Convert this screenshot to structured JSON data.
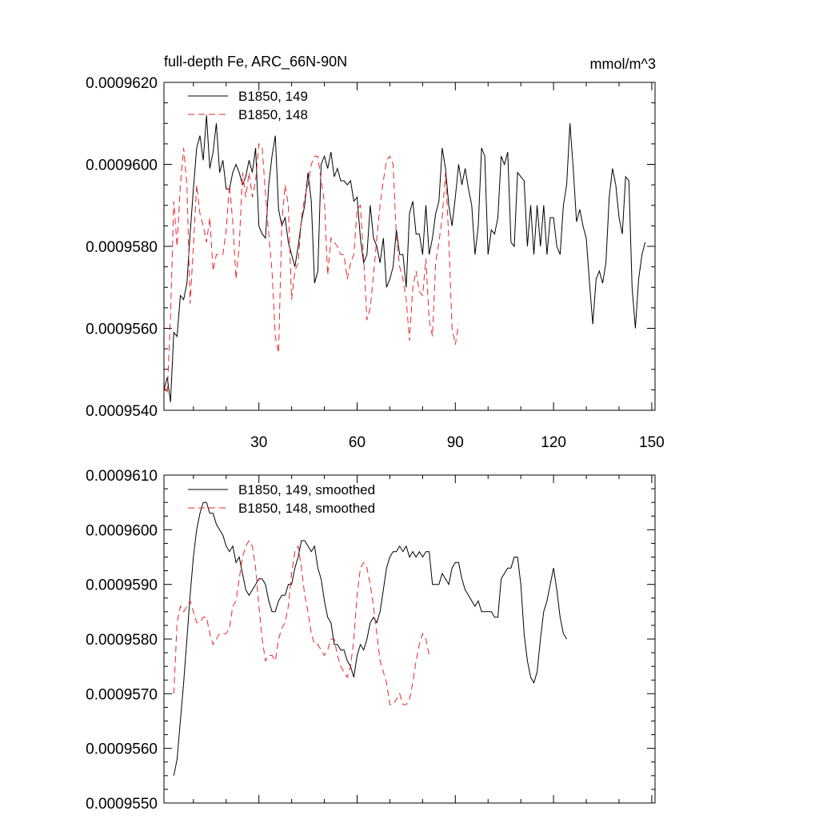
{
  "chart_data": [
    {
      "type": "line",
      "title": "full-depth Fe, ARC_66N-90N",
      "units": "mmol/m^3",
      "xlim": [
        1,
        151
      ],
      "ylim": [
        0.000954,
        0.000962
      ],
      "xticks": [
        30,
        60,
        90,
        120,
        150
      ],
      "xtick_labels": [
        "30",
        "60",
        "90",
        "120",
        "150"
      ],
      "yticks": [
        0.000954,
        0.000956,
        0.000958,
        0.00096,
        0.000962
      ],
      "ytick_labels": [
        "0.0009540",
        "0.0009560",
        "0.0009580",
        "0.0009600",
        "0.0009620"
      ],
      "legend_position": "top-left",
      "series": [
        {
          "name": "B1850, 149",
          "color": "#000000",
          "dash": "solid",
          "x_start": 1,
          "values": [
            0.0009545,
            0.0009548,
            0.0009542,
            0.0009559,
            0.0009558,
            0.0009568,
            0.0009567,
            0.0009571,
            0.0009583,
            0.0009594,
            0.0009604,
            0.0009607,
            0.0009601,
            0.0009612,
            0.0009599,
            0.0009603,
            0.000961,
            0.0009598,
            0.0009601,
            0.0009594,
            0.0009594,
            0.0009598,
            0.00096,
            0.0009598,
            0.0009595,
            0.0009597,
            0.0009601,
            0.0009598,
            0.0009604,
            0.0009585,
            0.0009583,
            0.0009582,
            0.0009595,
            0.0009602,
            0.0009607,
            0.0009589,
            0.0009585,
            0.0009587,
            0.0009581,
            0.0009578,
            0.0009575,
            0.000958,
            0.0009586,
            0.000959,
            0.0009598,
            0.0009591,
            0.0009571,
            0.0009574,
            0.00096,
            0.0009602,
            0.0009599,
            0.0009603,
            0.0009597,
            0.0009599,
            0.0009596,
            0.0009596,
            0.0009595,
            0.0009596,
            0.0009591,
            0.0009592,
            0.0009582,
            0.0009576,
            0.0009578,
            0.000959,
            0.0009582,
            0.000958,
            0.0009576,
            0.0009582,
            0.000957,
            0.0009572,
            0.0009575,
            0.0009584,
            0.0009578,
            0.0009578,
            0.000957,
            0.0009588,
            0.0009591,
            0.0009583,
            0.0009583,
            0.0009578,
            0.000959,
            0.0009578,
            0.0009582,
            0.0009588,
            0.0009591,
            0.0009604,
            0.0009599,
            0.000959,
            0.0009585,
            0.0009592,
            0.00096,
            0.0009595,
            0.0009599,
            0.0009594,
            0.000959,
            0.0009578,
            0.0009585,
            0.0009604,
            0.0009602,
            0.0009578,
            0.0009584,
            0.0009583,
            0.0009587,
            0.0009602,
            0.00096,
            0.0009603,
            0.0009581,
            0.000958,
            0.0009598,
            0.0009597,
            0.0009596,
            0.000958,
            0.000959,
            0.0009578,
            0.000959,
            0.000958,
            0.000959,
            0.0009578,
            0.0009587,
            0.0009587,
            0.000958,
            0.0009578,
            0.000959,
            0.0009595,
            0.000961,
            0.0009599,
            0.0009586,
            0.0009589,
            0.0009585,
            0.0009582,
            0.0009571,
            0.0009561,
            0.0009572,
            0.0009574,
            0.0009571,
            0.0009576,
            0.0009592,
            0.0009599,
            0.0009595,
            0.0009587,
            0.0009583,
            0.0009597,
            0.0009596,
            0.000957,
            0.000956,
            0.0009572,
            0.0009578,
            0.0009581
          ]
        },
        {
          "name": "B1850, 148",
          "color": "#e8262a",
          "dash": "dashed",
          "x_start": 1,
          "values": [
            0.0009546,
            0.0009544,
            0.0009563,
            0.0009591,
            0.000958,
            0.0009595,
            0.0009604,
            0.0009595,
            0.0009566,
            0.000958,
            0.0009595,
            0.0009588,
            0.0009585,
            0.0009581,
            0.0009587,
            0.0009574,
            0.0009578,
            0.0009578,
            0.0009578,
            0.0009584,
            0.0009595,
            0.0009586,
            0.0009572,
            0.000958,
            0.0009598,
            0.0009592,
            0.0009598,
            0.0009592,
            0.0009596,
            0.0009605,
            0.0009604,
            0.0009593,
            0.0009583,
            0.0009574,
            0.0009558,
            0.0009554,
            0.0009586,
            0.0009595,
            0.000959,
            0.0009567,
            0.0009574,
            0.0009576,
            0.0009587,
            0.0009592,
            0.0009595,
            0.00096,
            0.0009602,
            0.0009602,
            0.0009596,
            0.0009591,
            0.0009573,
            0.0009582,
            0.0009581,
            0.000958,
            0.0009578,
            0.0009578,
            0.0009572,
            0.0009576,
            0.0009578,
            0.0009589,
            0.000959,
            0.0009577,
            0.0009562,
            0.0009565,
            0.0009573,
            0.0009582,
            0.000959,
            0.0009596,
            0.0009601,
            0.0009602,
            0.00096,
            0.0009582,
            0.0009575,
            0.0009572,
            0.0009567,
            0.0009557,
            0.000957,
            0.0009574,
            0.0009569,
            0.0009568,
            0.0009577,
            0.0009562,
            0.0009558,
            0.0009576,
            0.0009581,
            0.0009587,
            0.0009598,
            0.0009582,
            0.000956,
            0.0009556,
            0.0009561
          ]
        }
      ]
    },
    {
      "type": "line",
      "xlim": [
        1,
        151
      ],
      "ylim": [
        0.000955,
        0.000961
      ],
      "yticks": [
        0.000955,
        0.000956,
        0.000957,
        0.000958,
        0.000959,
        0.00096,
        0.000961
      ],
      "ytick_labels": [
        "0.0009550",
        "0.0009560",
        "0.0009570",
        "0.0009580",
        "0.0009590",
        "0.0009600",
        "0.0009610"
      ],
      "xticks": [
        30,
        60,
        90,
        120,
        150
      ],
      "legend_position": "top-left",
      "series": [
        {
          "name": "B1850, 149, smoothed",
          "color": "#000000",
          "dash": "solid",
          "x_start": 4,
          "values": [
            0.0009555,
            0.0009558,
            0.0009565,
            0.0009572,
            0.000958,
            0.0009588,
            0.0009595,
            0.00096,
            0.0009603,
            0.0009605,
            0.0009605,
            0.0009603,
            0.0009603,
            0.0009601,
            0.00096,
            0.0009599,
            0.0009597,
            0.0009596,
            0.0009597,
            0.0009594,
            0.0009595,
            0.0009592,
            0.0009589,
            0.0009588,
            0.0009589,
            0.000959,
            0.0009591,
            0.0009591,
            0.000959,
            0.0009587,
            0.0009585,
            0.0009585,
            0.0009587,
            0.0009588,
            0.0009588,
            0.000959,
            0.000959,
            0.0009593,
            0.0009595,
            0.0009598,
            0.0009598,
            0.0009597,
            0.0009596,
            0.0009597,
            0.0009593,
            0.0009591,
            0.0009587,
            0.0009584,
            0.0009583,
            0.0009579,
            0.0009579,
            0.0009578,
            0.0009578,
            0.0009576,
            0.0009575,
            0.0009573,
            0.0009577,
            0.0009579,
            0.0009578,
            0.000958,
            0.0009583,
            0.0009584,
            0.0009583,
            0.0009585,
            0.0009589,
            0.0009593,
            0.0009595,
            0.0009596,
            0.0009596,
            0.0009597,
            0.0009596,
            0.0009597,
            0.0009595,
            0.0009596,
            0.0009595,
            0.0009596,
            0.0009595,
            0.0009596,
            0.0009596,
            0.000959,
            0.000959,
            0.000959,
            0.0009592,
            0.0009591,
            0.000959,
            0.0009593,
            0.0009594,
            0.0009594,
            0.0009591,
            0.0009589,
            0.0009588,
            0.0009587,
            0.0009586,
            0.0009587,
            0.0009585,
            0.0009585,
            0.0009585,
            0.0009585,
            0.0009584,
            0.0009584,
            0.0009591,
            0.0009592,
            0.0009593,
            0.0009593,
            0.0009595,
            0.0009595,
            0.000959,
            0.0009581,
            0.0009576,
            0.0009573,
            0.0009572,
            0.0009574,
            0.000958,
            0.0009585,
            0.0009587,
            0.000959,
            0.0009593,
            0.0009589,
            0.0009584,
            0.0009581,
            0.000958
          ]
        },
        {
          "name": "B1850, 148, smoothed",
          "color": "#e8262a",
          "dash": "dashed",
          "x_start": 4,
          "values": [
            0.000957,
            0.0009583,
            0.0009586,
            0.0009585,
            0.0009586,
            0.0009587,
            0.0009585,
            0.0009583,
            0.0009583,
            0.0009584,
            0.0009584,
            0.0009581,
            0.0009579,
            0.000958,
            0.0009581,
            0.0009581,
            0.0009581,
            0.0009582,
            0.0009586,
            0.0009587,
            0.0009591,
            0.0009595,
            0.0009597,
            0.0009598,
            0.0009597,
            0.0009593,
            0.0009586,
            0.000958,
            0.0009576,
            0.0009577,
            0.0009577,
            0.0009576,
            0.000958,
            0.0009582,
            0.0009583,
            0.0009586,
            0.0009592,
            0.0009596,
            0.0009597,
            0.0009593,
            0.0009588,
            0.0009585,
            0.0009581,
            0.0009579,
            0.0009579,
            0.0009578,
            0.0009577,
            0.0009578,
            0.000958,
            0.000958,
            0.0009577,
            0.0009575,
            0.0009574,
            0.0009573,
            0.0009575,
            0.000958,
            0.0009588,
            0.0009593,
            0.0009594,
            0.0009593,
            0.000959,
            0.0009586,
            0.0009581,
            0.0009576,
            0.0009574,
            0.0009572,
            0.0009568,
            0.0009568,
            0.0009569,
            0.000957,
            0.0009568,
            0.0009568,
            0.0009569,
            0.0009572,
            0.0009576,
            0.0009579,
            0.0009581,
            0.000958,
            0.0009577
          ]
        }
      ]
    }
  ]
}
